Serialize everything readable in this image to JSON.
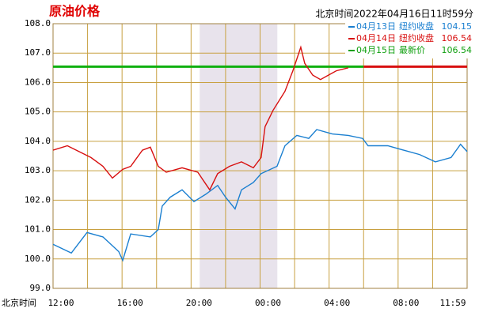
{
  "chart_data": {
    "type": "line",
    "title": "原油价格",
    "timestamp": "北京时间2022年04月16日11时59分",
    "x_label": "北京时间",
    "xlim": [
      0,
      24
    ],
    "ylim": [
      99,
      108
    ],
    "yticks": [
      {
        "value": 99,
        "label": "99.0"
      },
      {
        "value": 100,
        "label": "100.0"
      },
      {
        "value": 101,
        "label": "101.0"
      },
      {
        "value": 102,
        "label": "102.0"
      },
      {
        "value": 103,
        "label": "103.0"
      },
      {
        "value": 104,
        "label": "104.0"
      },
      {
        "value": 105,
        "label": "105.0"
      },
      {
        "value": 106,
        "label": "106.0"
      },
      {
        "value": 107,
        "label": "107.0"
      },
      {
        "value": 108,
        "label": "108.0"
      }
    ],
    "xticks": [
      {
        "value": 0,
        "label": "12:00"
      },
      {
        "value": 4,
        "label": "16:00"
      },
      {
        "value": 8,
        "label": "20:00"
      },
      {
        "value": 12,
        "label": "00:00"
      },
      {
        "value": 16,
        "label": "04:00"
      },
      {
        "value": 20,
        "label": "08:00"
      },
      {
        "value": 23.98,
        "label": "11:59"
      }
    ],
    "xgrid": [
      0,
      2,
      4,
      6,
      8,
      10,
      12,
      14,
      16,
      18,
      20,
      22,
      24
    ],
    "grid": true,
    "shaded_range": [
      8.5,
      13
    ],
    "hlines": [
      {
        "value": 106.54,
        "color": "#10b010",
        "from": 0,
        "to": 18
      },
      {
        "value": 106.54,
        "color": "#d81010",
        "from": 18,
        "to": 24
      }
    ],
    "legend": [
      {
        "date": "04月13日",
        "label": "纽约收盘",
        "value": 104.15,
        "color": "#1a7fd0"
      },
      {
        "date": "04月14日",
        "label": "纽约收盘",
        "value": 106.54,
        "color": "#d81010"
      },
      {
        "date": "04月15日",
        "label": "最新价",
        "value": 106.54,
        "color": "#10a010"
      }
    ],
    "series": [
      {
        "color": "#1a7fd0",
        "x": [
          0,
          1.06,
          1.97,
          2.89,
          3.81,
          4.04,
          4.5,
          5.64,
          6.1,
          6.33,
          6.79,
          7.48,
          8.17,
          8.85,
          9.54,
          10.0,
          10.55,
          10.92,
          11.61,
          12.06,
          12.98,
          13.44,
          14.13,
          14.82,
          15.28,
          16.19,
          17.11,
          17.94,
          18.26,
          19.4,
          20.32,
          21.24,
          22.16,
          23.07,
          23.62,
          24
        ],
        "values": [
          100.5,
          100.2,
          100.9,
          100.75,
          100.25,
          99.95,
          100.85,
          100.75,
          101.0,
          101.8,
          102.1,
          102.35,
          101.95,
          102.2,
          102.5,
          102.1,
          101.7,
          102.35,
          102.6,
          102.9,
          103.15,
          103.85,
          104.2,
          104.1,
          104.4,
          104.25,
          104.2,
          104.1,
          103.85,
          103.85,
          103.7,
          103.55,
          103.3,
          103.45,
          103.9,
          103.65
        ]
      },
      {
        "color": "#d81010",
        "x": [
          0,
          0.83,
          1.51,
          2.2,
          2.89,
          3.44,
          4.04,
          4.5,
          5.18,
          5.64,
          6.1,
          6.56,
          7.48,
          8.39,
          9.08,
          9.54,
          10.23,
          10.92,
          11.61,
          12.06,
          12.29,
          12.75,
          13.44,
          13.9,
          14.36,
          14.59,
          15.05,
          15.5,
          15.96,
          16.42,
          17.11
        ],
        "values": [
          103.7,
          103.85,
          103.65,
          103.45,
          103.15,
          102.75,
          103.05,
          103.15,
          103.7,
          103.8,
          103.15,
          102.95,
          103.1,
          102.95,
          102.35,
          102.9,
          103.15,
          103.3,
          103.1,
          103.45,
          104.5,
          105.05,
          105.7,
          106.4,
          107.2,
          106.65,
          106.25,
          106.1,
          106.25,
          106.4,
          106.5
        ]
      }
    ]
  }
}
